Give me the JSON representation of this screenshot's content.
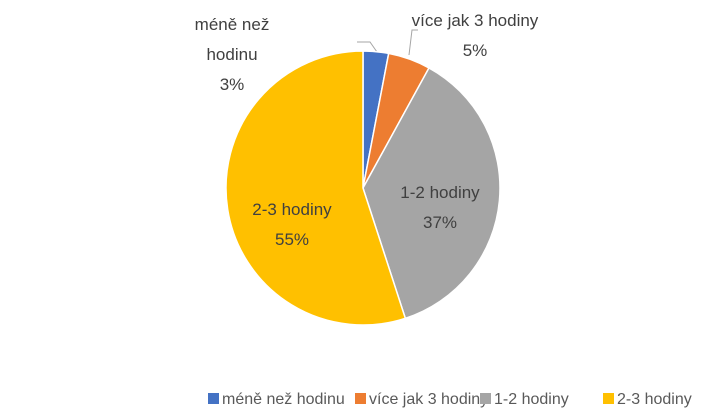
{
  "chart_data": {
    "type": "pie",
    "categories": [
      "méně než hodinu",
      "více jak 3 hodiny",
      "1-2 hodiny",
      "2-3 hodiny"
    ],
    "values": [
      3,
      5,
      37,
      55
    ],
    "value_labels": [
      "3%",
      "5%",
      "37%",
      "55%"
    ],
    "colors": [
      "#4472c4",
      "#ed7d31",
      "#a5a5a5",
      "#ffc000"
    ],
    "legend": "bottom"
  }
}
